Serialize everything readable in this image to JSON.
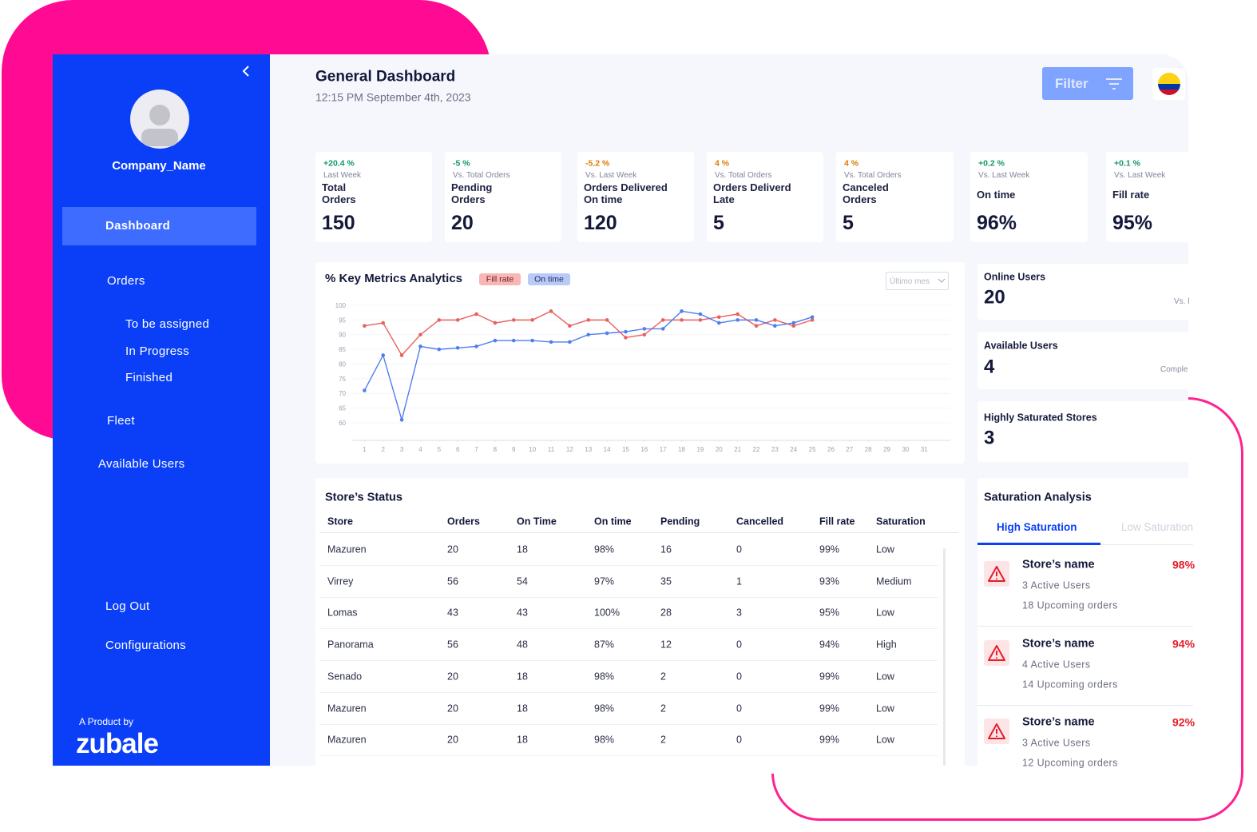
{
  "sidebar": {
    "company_name": "Company_Name",
    "nav": [
      "Dashboard",
      "Orders",
      "To be assigned",
      "In Progress",
      "Finished",
      "Fleet",
      "Available Users"
    ],
    "footer_nav": [
      "Log Out",
      "Configurations"
    ],
    "product_by": "A Product by",
    "brand": "zubale"
  },
  "header": {
    "title": "General Dashboard",
    "datetime": "12:15 PM September 4th, 2023",
    "filter": "Filter"
  },
  "kpis": [
    {
      "change": "+20.4 %",
      "color": "#12966a",
      "compare": "Last Week",
      "label": [
        "Total",
        "Orders"
      ],
      "value": "150"
    },
    {
      "change": "-5 %",
      "color": "#12966a",
      "compare": "Vs. Total Orders",
      "label": [
        "Pending",
        "Orders"
      ],
      "value": "20"
    },
    {
      "change": "-5.2 %",
      "color": "#e07800",
      "compare": "Vs. Last Week",
      "label": [
        "Orders Delivered",
        "On time"
      ],
      "value": "120"
    },
    {
      "change": "4 %",
      "color": "#e07800",
      "compare": "Vs. Total Orders",
      "label": [
        "Orders Deliverd",
        "Late"
      ],
      "value": "5"
    },
    {
      "change": "4 %",
      "color": "#e07800",
      "compare": "Vs. Total Orders",
      "label": [
        "Canceled",
        "Orders"
      ],
      "value": "5"
    },
    {
      "change": "+0.2 %",
      "color": "#12966a",
      "compare": "Vs. Last Week",
      "label": [
        "On time"
      ],
      "value": "96%"
    },
    {
      "change": "+0.1 %",
      "color": "#12966a",
      "compare": "Vs. Last Week",
      "label": [
        "Fill rate"
      ],
      "value": "95%"
    }
  ],
  "chart_data": {
    "type": "line",
    "title": "% Key Metrics Analytics",
    "filter": "Último mes",
    "x": [
      1,
      2,
      3,
      4,
      5,
      6,
      7,
      8,
      9,
      10,
      11,
      12,
      13,
      14,
      15,
      16,
      17,
      18,
      19,
      20,
      21,
      22,
      23,
      24,
      25,
      26,
      27,
      28,
      29,
      30,
      31
    ],
    "xlim": [
      0.3,
      32.4
    ],
    "xticks": [
      1,
      2,
      3,
      4,
      5,
      6,
      7,
      8,
      9,
      10,
      11,
      12,
      13,
      14,
      15,
      16,
      17,
      18,
      19,
      20,
      21,
      22,
      23,
      24,
      25,
      26,
      27,
      28,
      29,
      30,
      31
    ],
    "ylim": [
      54,
      100
    ],
    "yticks": [
      60,
      65,
      70,
      75,
      80,
      85,
      90,
      95,
      100
    ],
    "series": [
      {
        "name": "Fill rate",
        "color": "#e8615f",
        "chip": "#f8b7b5",
        "values": [
          93,
          94,
          83,
          90,
          95,
          95,
          97,
          94,
          95,
          95,
          98,
          93,
          95,
          95,
          89,
          90,
          95,
          95,
          95,
          96,
          97,
          93,
          95,
          93,
          95,
          null,
          null,
          null,
          null,
          null,
          null
        ]
      },
      {
        "name": "On time",
        "color": "#4f7ef0",
        "chip": "#b9caf6",
        "values": [
          71,
          83,
          61,
          86,
          85,
          85.5,
          86,
          88,
          88,
          88,
          87.5,
          87.5,
          90,
          90.5,
          91,
          92,
          92,
          98,
          97,
          94,
          95,
          95,
          93,
          94,
          96,
          null,
          null,
          null,
          null,
          null,
          null
        ]
      }
    ]
  },
  "metrics": [
    {
      "label": "Online Users",
      "value": "20",
      "note": "Vs. l"
    },
    {
      "label": "Available Users",
      "value": "4",
      "note": "Comple"
    },
    {
      "label": "Highly Saturated Stores",
      "value": "3"
    }
  ],
  "saturation": {
    "title": "Saturation Analysis",
    "tabs": [
      "High Saturation",
      "Low Saturation"
    ],
    "items": [
      {
        "name": "Store’s name",
        "users": "3 Active Users",
        "orders": "18 Upcoming orders",
        "rate": "98%"
      },
      {
        "name": "Store’s name",
        "users": "4 Active Users",
        "orders": "14 Upcoming orders",
        "rate": "94%"
      },
      {
        "name": "Store’s name",
        "users": "3 Active Users",
        "orders": "12 Upcoming orders",
        "rate": "92%"
      }
    ]
  },
  "table": {
    "title": "Store’s Status",
    "columns": [
      "Store",
      "Orders",
      "On Time",
      "On time",
      "Pending",
      "Cancelled",
      "Fill rate",
      "Saturation"
    ],
    "rows": [
      [
        "Mazuren",
        20,
        18,
        "98%",
        16,
        0,
        "99%",
        "Low"
      ],
      [
        "Virrey",
        56,
        54,
        "97%",
        35,
        1,
        "93%",
        "Medium"
      ],
      [
        "Lomas",
        43,
        43,
        "100%",
        28,
        3,
        "95%",
        "Low"
      ],
      [
        "Panorama",
        56,
        48,
        "87%",
        12,
        0,
        "94%",
        "High"
      ],
      [
        "Senado",
        20,
        18,
        "98%",
        2,
        0,
        "99%",
        "Low"
      ],
      [
        "Mazuren",
        20,
        18,
        "98%",
        2,
        0,
        "99%",
        "Low"
      ],
      [
        "Mazuren",
        20,
        18,
        "98%",
        2,
        0,
        "99%",
        "Low"
      ]
    ]
  }
}
